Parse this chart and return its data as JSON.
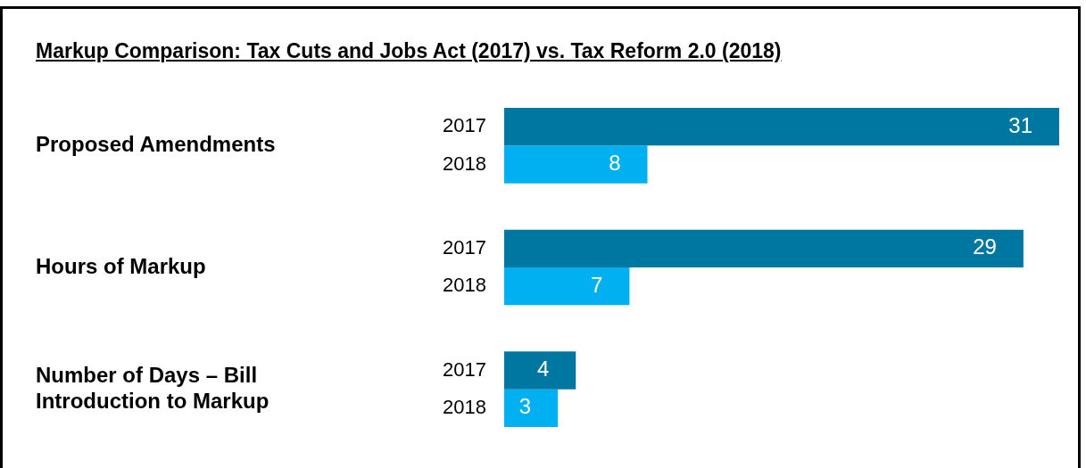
{
  "chart_data": {
    "type": "bar",
    "orientation": "horizontal",
    "title": "Markup Comparison: Tax Cuts and Jobs Act (2017) vs. Tax Reform 2.0 (2018)",
    "categories": [
      "Proposed Amendments",
      "Hours of Markup",
      "Number of Days – Bill Introduction to Markup"
    ],
    "series": [
      {
        "name": "2017",
        "color": "#0077a0",
        "values": [
          31,
          29,
          4
        ]
      },
      {
        "name": "2018",
        "color": "#00b0f0",
        "values": [
          8,
          7,
          3
        ]
      }
    ],
    "data_labels": true,
    "legend": false
  }
}
